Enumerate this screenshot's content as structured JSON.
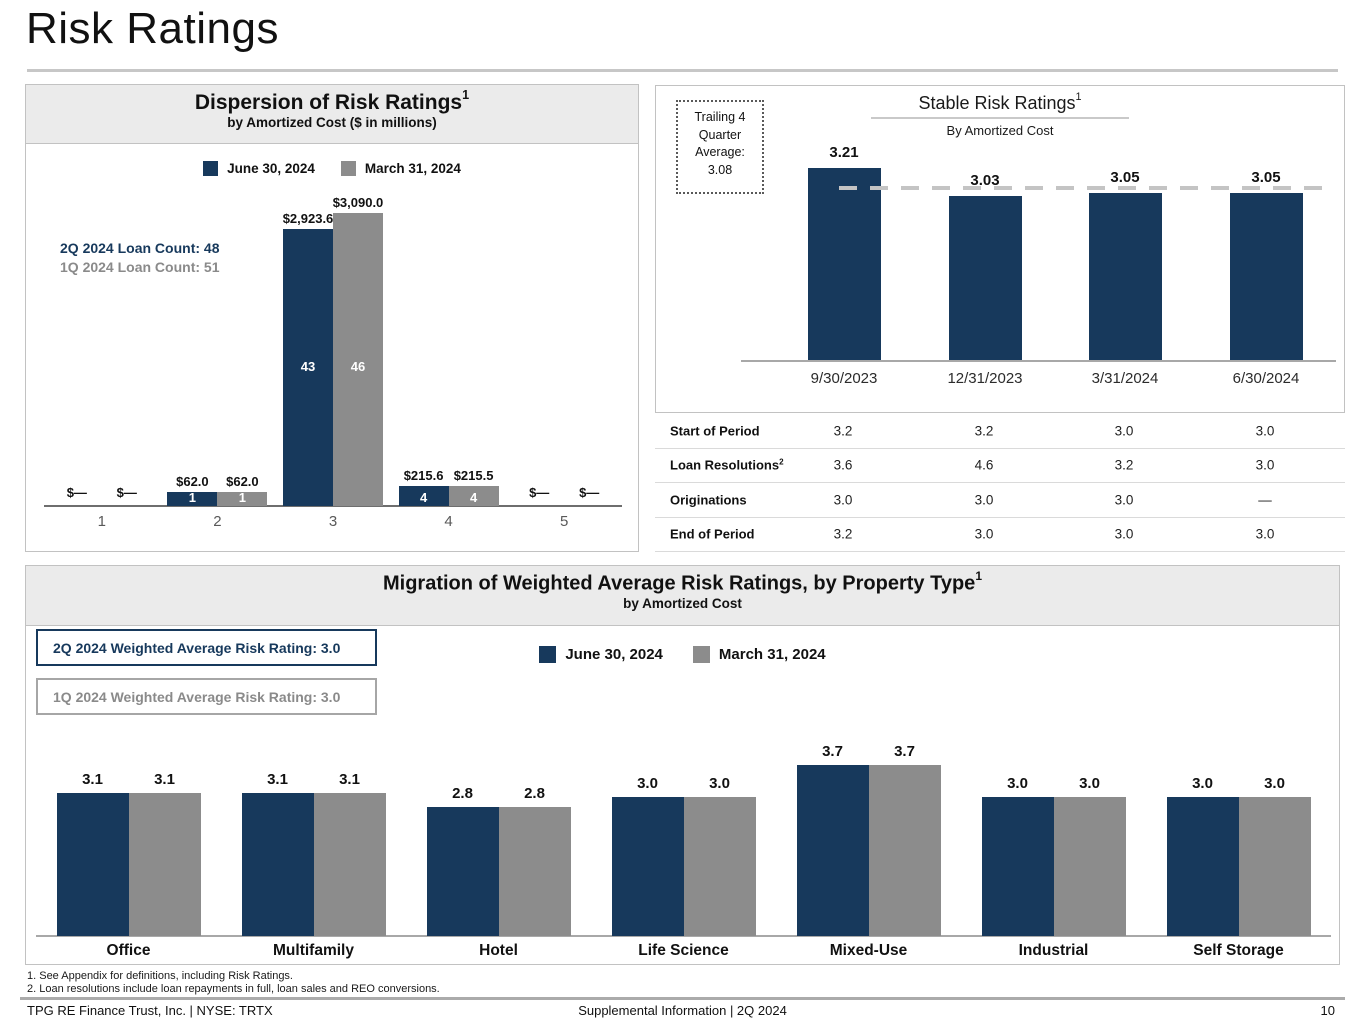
{
  "page_title": "Risk Ratings",
  "colors": {
    "navy": "#17395C",
    "series_gray": "#8C8C8C",
    "header_bg": "#EBEBEB",
    "dash_gray": "#C4C4C4"
  },
  "legend": {
    "june": "June 30, 2024",
    "march": "March 31, 2024"
  },
  "dispersion": {
    "title": "Dispersion of Risk Ratings",
    "title_sup": "1",
    "subtitle": "by Amortized Cost ($ in millions)",
    "loan_count_2q": "2Q 2024 Loan Count: 48",
    "loan_count_1q": "1Q 2024 Loan Count: 51"
  },
  "stable": {
    "title": "Stable Risk Ratings",
    "title_sup": "1",
    "subtitle": "By Amortized Cost",
    "callout_lines": [
      "Trailing 4",
      "Quarter",
      "Average:",
      "3.08"
    ]
  },
  "migration": {
    "title": "Migration of Weighted Average Risk Ratings, by Property Type",
    "title_sup": "1",
    "subtitle": "by Amortized Cost",
    "box_2q": "2Q 2024 Weighted Average Risk Rating: 3.0",
    "box_1q": "1Q 2024 Weighted Average Risk Rating: 3.0"
  },
  "chart_data": [
    {
      "id": "dispersion",
      "type": "bar",
      "title": "Dispersion of Risk Ratings",
      "subtitle": "by Amortized Cost ($ in millions)",
      "categories": [
        "1",
        "2",
        "3",
        "4",
        "5"
      ],
      "ylim": [
        0,
        3090
      ],
      "series": [
        {
          "name": "June 30, 2024",
          "color": "#17395C",
          "values": [
            0,
            62.0,
            2923.6,
            215.6,
            0
          ],
          "value_labels": [
            "$—",
            "$62.0",
            "$2,923.6",
            "$215.6",
            "$—"
          ],
          "loan_counts": [
            "",
            "1",
            "43",
            "4",
            ""
          ]
        },
        {
          "name": "March 31, 2024",
          "color": "#8C8C8C",
          "values": [
            0,
            62.0,
            3090.0,
            215.5,
            0
          ],
          "value_labels": [
            "$—",
            "$62.0",
            "$3,090.0",
            "$215.5",
            "$—"
          ],
          "loan_counts": [
            "",
            "1",
            "46",
            "4",
            ""
          ]
        }
      ]
    },
    {
      "id": "stable",
      "type": "bar",
      "title": "Stable Risk Ratings",
      "subtitle": "By Amortized Cost",
      "categories": [
        "9/30/2023",
        "12/31/2023",
        "3/31/2024",
        "6/30/2024"
      ],
      "ylim": [
        1.95,
        3.35
      ],
      "series": [
        {
          "name": "Weighted Average Risk Rating",
          "color": "#17395C",
          "values": [
            3.21,
            3.03,
            3.05,
            3.05
          ],
          "value_labels": [
            "3.21",
            "3.03",
            "3.05",
            "3.05"
          ]
        }
      ],
      "average_line": {
        "value": 3.08,
        "label": "Trailing 4 Quarter Average: 3.08",
        "color": "#C4C4C4"
      }
    },
    {
      "id": "migration",
      "type": "bar",
      "title": "Migration of Weighted Average Risk Ratings, by Property Type",
      "subtitle": "by Amortized Cost",
      "categories": [
        "Office",
        "Multifamily",
        "Hotel",
        "Life Science",
        "Mixed-Use",
        "Industrial",
        "Self Storage"
      ],
      "ylim": [
        0,
        4
      ],
      "series": [
        {
          "name": "June 30, 2024",
          "color": "#17395C",
          "values": [
            3.1,
            3.1,
            2.8,
            3.0,
            3.7,
            3.0,
            3.0
          ],
          "value_labels": [
            "3.1",
            "3.1",
            "2.8",
            "3.0",
            "3.7",
            "3.0",
            "3.0"
          ]
        },
        {
          "name": "March 31, 2024",
          "color": "#8C8C8C",
          "values": [
            3.1,
            3.1,
            2.8,
            3.0,
            3.7,
            3.0,
            3.0
          ],
          "value_labels": [
            "3.1",
            "3.1",
            "2.8",
            "3.0",
            "3.7",
            "3.0",
            "3.0"
          ]
        }
      ]
    },
    {
      "id": "stable-period-table",
      "type": "table",
      "columns": [
        "9/30/2023",
        "12/31/2023",
        "3/31/2024",
        "6/30/2024"
      ],
      "rows": [
        {
          "label": "Start of Period",
          "label_sup": "",
          "values": [
            "3.2",
            "3.2",
            "3.0",
            "3.0"
          ]
        },
        {
          "label": "Loan Resolutions",
          "label_sup": "2",
          "values": [
            "3.6",
            "4.6",
            "3.2",
            "3.0"
          ]
        },
        {
          "label": "Originations",
          "label_sup": "",
          "values": [
            "3.0",
            "3.0",
            "3.0",
            "—"
          ]
        },
        {
          "label": "End of Period",
          "label_sup": "",
          "values": [
            "3.2",
            "3.0",
            "3.0",
            "3.0"
          ]
        }
      ]
    }
  ],
  "footnotes": [
    "1. See Appendix for definitions, including Risk Ratings.",
    "2. Loan resolutions include loan repayments in full, loan sales and REO conversions."
  ],
  "footer": {
    "left": "TPG RE Finance Trust, Inc. | NYSE: TRTX",
    "center": "Supplemental Information | 2Q 2024",
    "page": "10"
  }
}
